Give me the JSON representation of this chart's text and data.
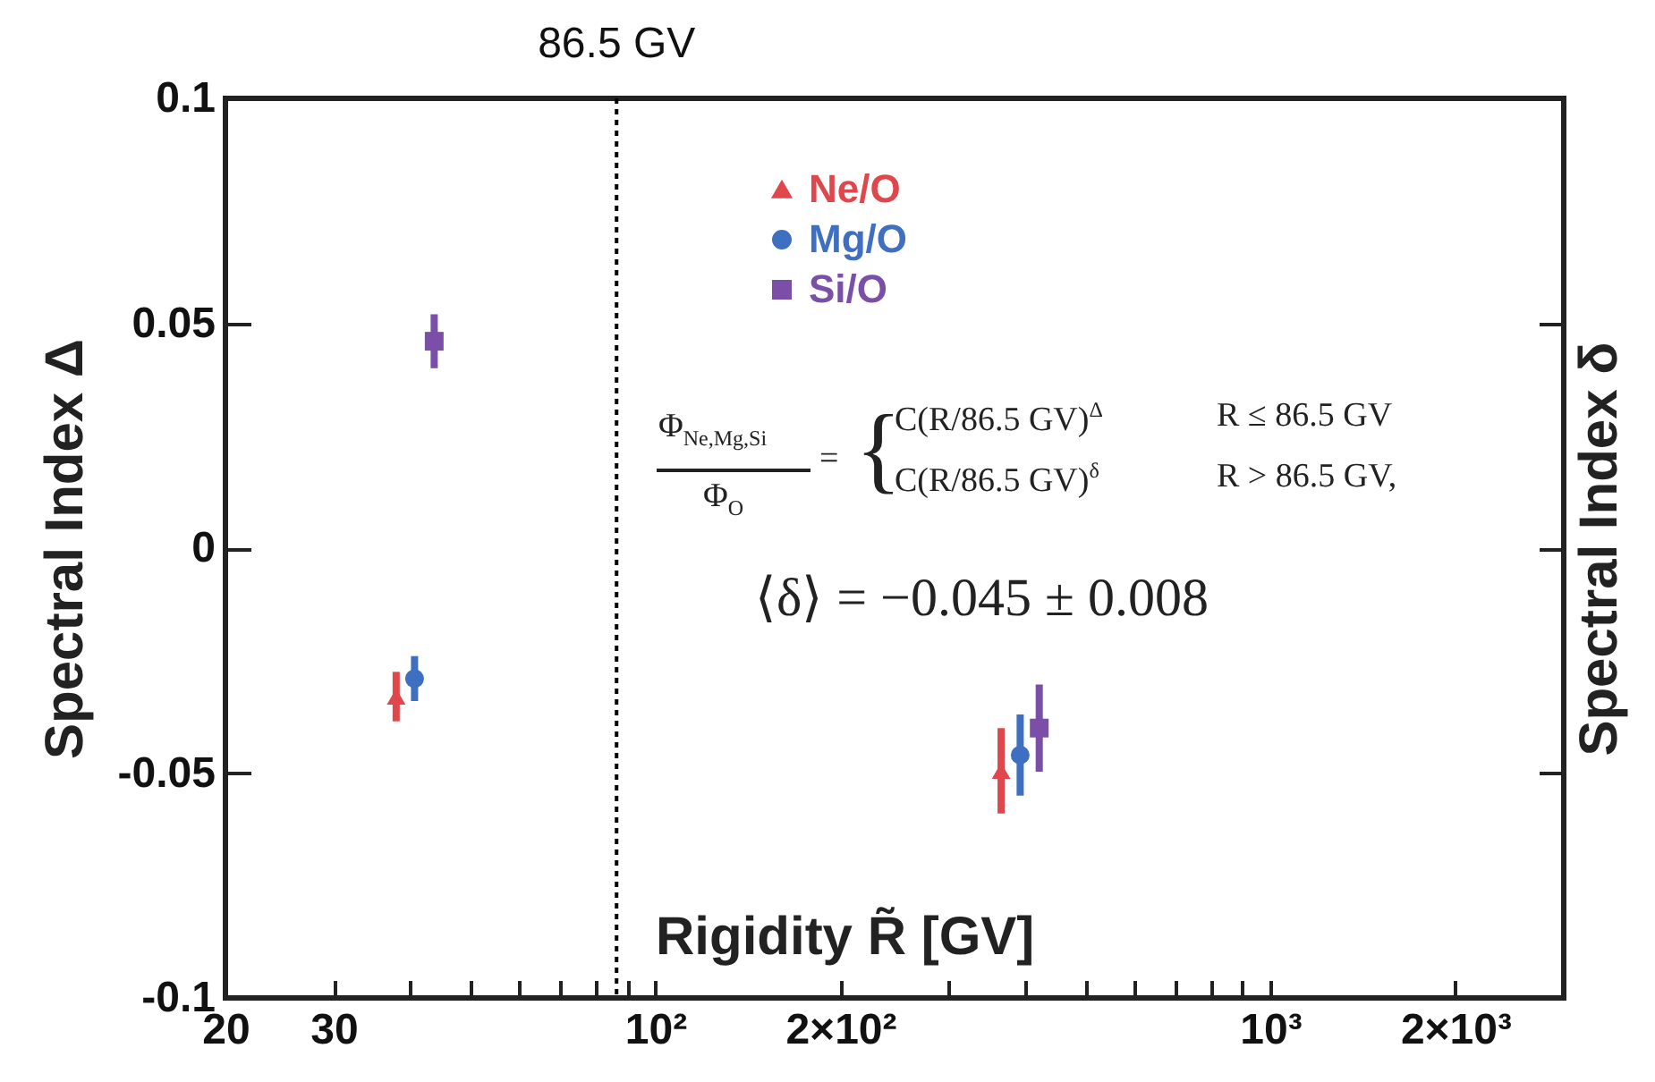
{
  "chart_data": {
    "type": "scatter",
    "xlabel": "Rigidity  R̃ [GV]",
    "ylabel": "Spectral Index  Δ",
    "y2label": "Spectral Index  δ",
    "log": "x",
    "grid": false,
    "legend": "top",
    "xlim": [
      20,
      3000
    ],
    "xticks": [
      20,
      30,
      {
        "value": 40,
        "label": null
      },
      {
        "value": 50,
        "label": null
      },
      {
        "value": 60,
        "label": null
      },
      {
        "value": 70,
        "label": null
      },
      {
        "value": 80,
        "label": null
      },
      {
        "value": 90,
        "label": null
      },
      {
        "value": 100,
        "label": "10²"
      },
      {
        "value": 200,
        "label": "2×10²"
      },
      {
        "value": 300,
        "label": null
      },
      {
        "value": 400,
        "label": null
      },
      {
        "value": 500,
        "label": null
      },
      {
        "value": 600,
        "label": null
      },
      {
        "value": 700,
        "label": null
      },
      {
        "value": 800,
        "label": null
      },
      {
        "value": 900,
        "label": null
      },
      {
        "value": 1000,
        "label": "10³"
      },
      {
        "value": 2000,
        "label": "2×10³"
      }
    ],
    "ylim": [
      -0.1,
      0.1
    ],
    "yticks": [
      -0.1,
      -0.05,
      0,
      0.05,
      0.1
    ],
    "ref_lines": [
      {
        "axis": "x",
        "value": 86.5,
        "label": "86.5 GV",
        "line_style": "dotted",
        "color": "#000000"
      }
    ],
    "annotations": [
      "Φ$_{Ne,Mg,Si}$",
      "Φ$_{O}$",
      "=",
      "{",
      "C(R/86.5 GV)$^{Δ}$",
      "R ≤ 86.5 GV",
      "C(R/86.5 GV)$^{δ}$",
      "R > 86.5 GV,",
      "⟨δ⟩ = −0.045 ± 0.008"
    ],
    "series": [
      {
        "name": "Ne/O",
        "color": "#e0474c",
        "marker": "triangle",
        "x": [
          37.9,
          365
        ],
        "values": [
          -0.033,
          -0.0495
        ],
        "errors": [
          0.0055,
          0.0095
        ]
      },
      {
        "name": "Mg/O",
        "color": "#3f6fc0",
        "marker": "circle",
        "x": [
          40.6,
          392
        ],
        "values": [
          -0.029,
          -0.046
        ],
        "errors": [
          0.005,
          0.009
        ]
      },
      {
        "name": "Si/O",
        "color": "#7b4fa8",
        "marker": "square",
        "x": [
          43.7,
          421
        ],
        "values": [
          0.046,
          -0.04
        ],
        "errors": [
          0.006,
          0.0097
        ]
      }
    ]
  }
}
